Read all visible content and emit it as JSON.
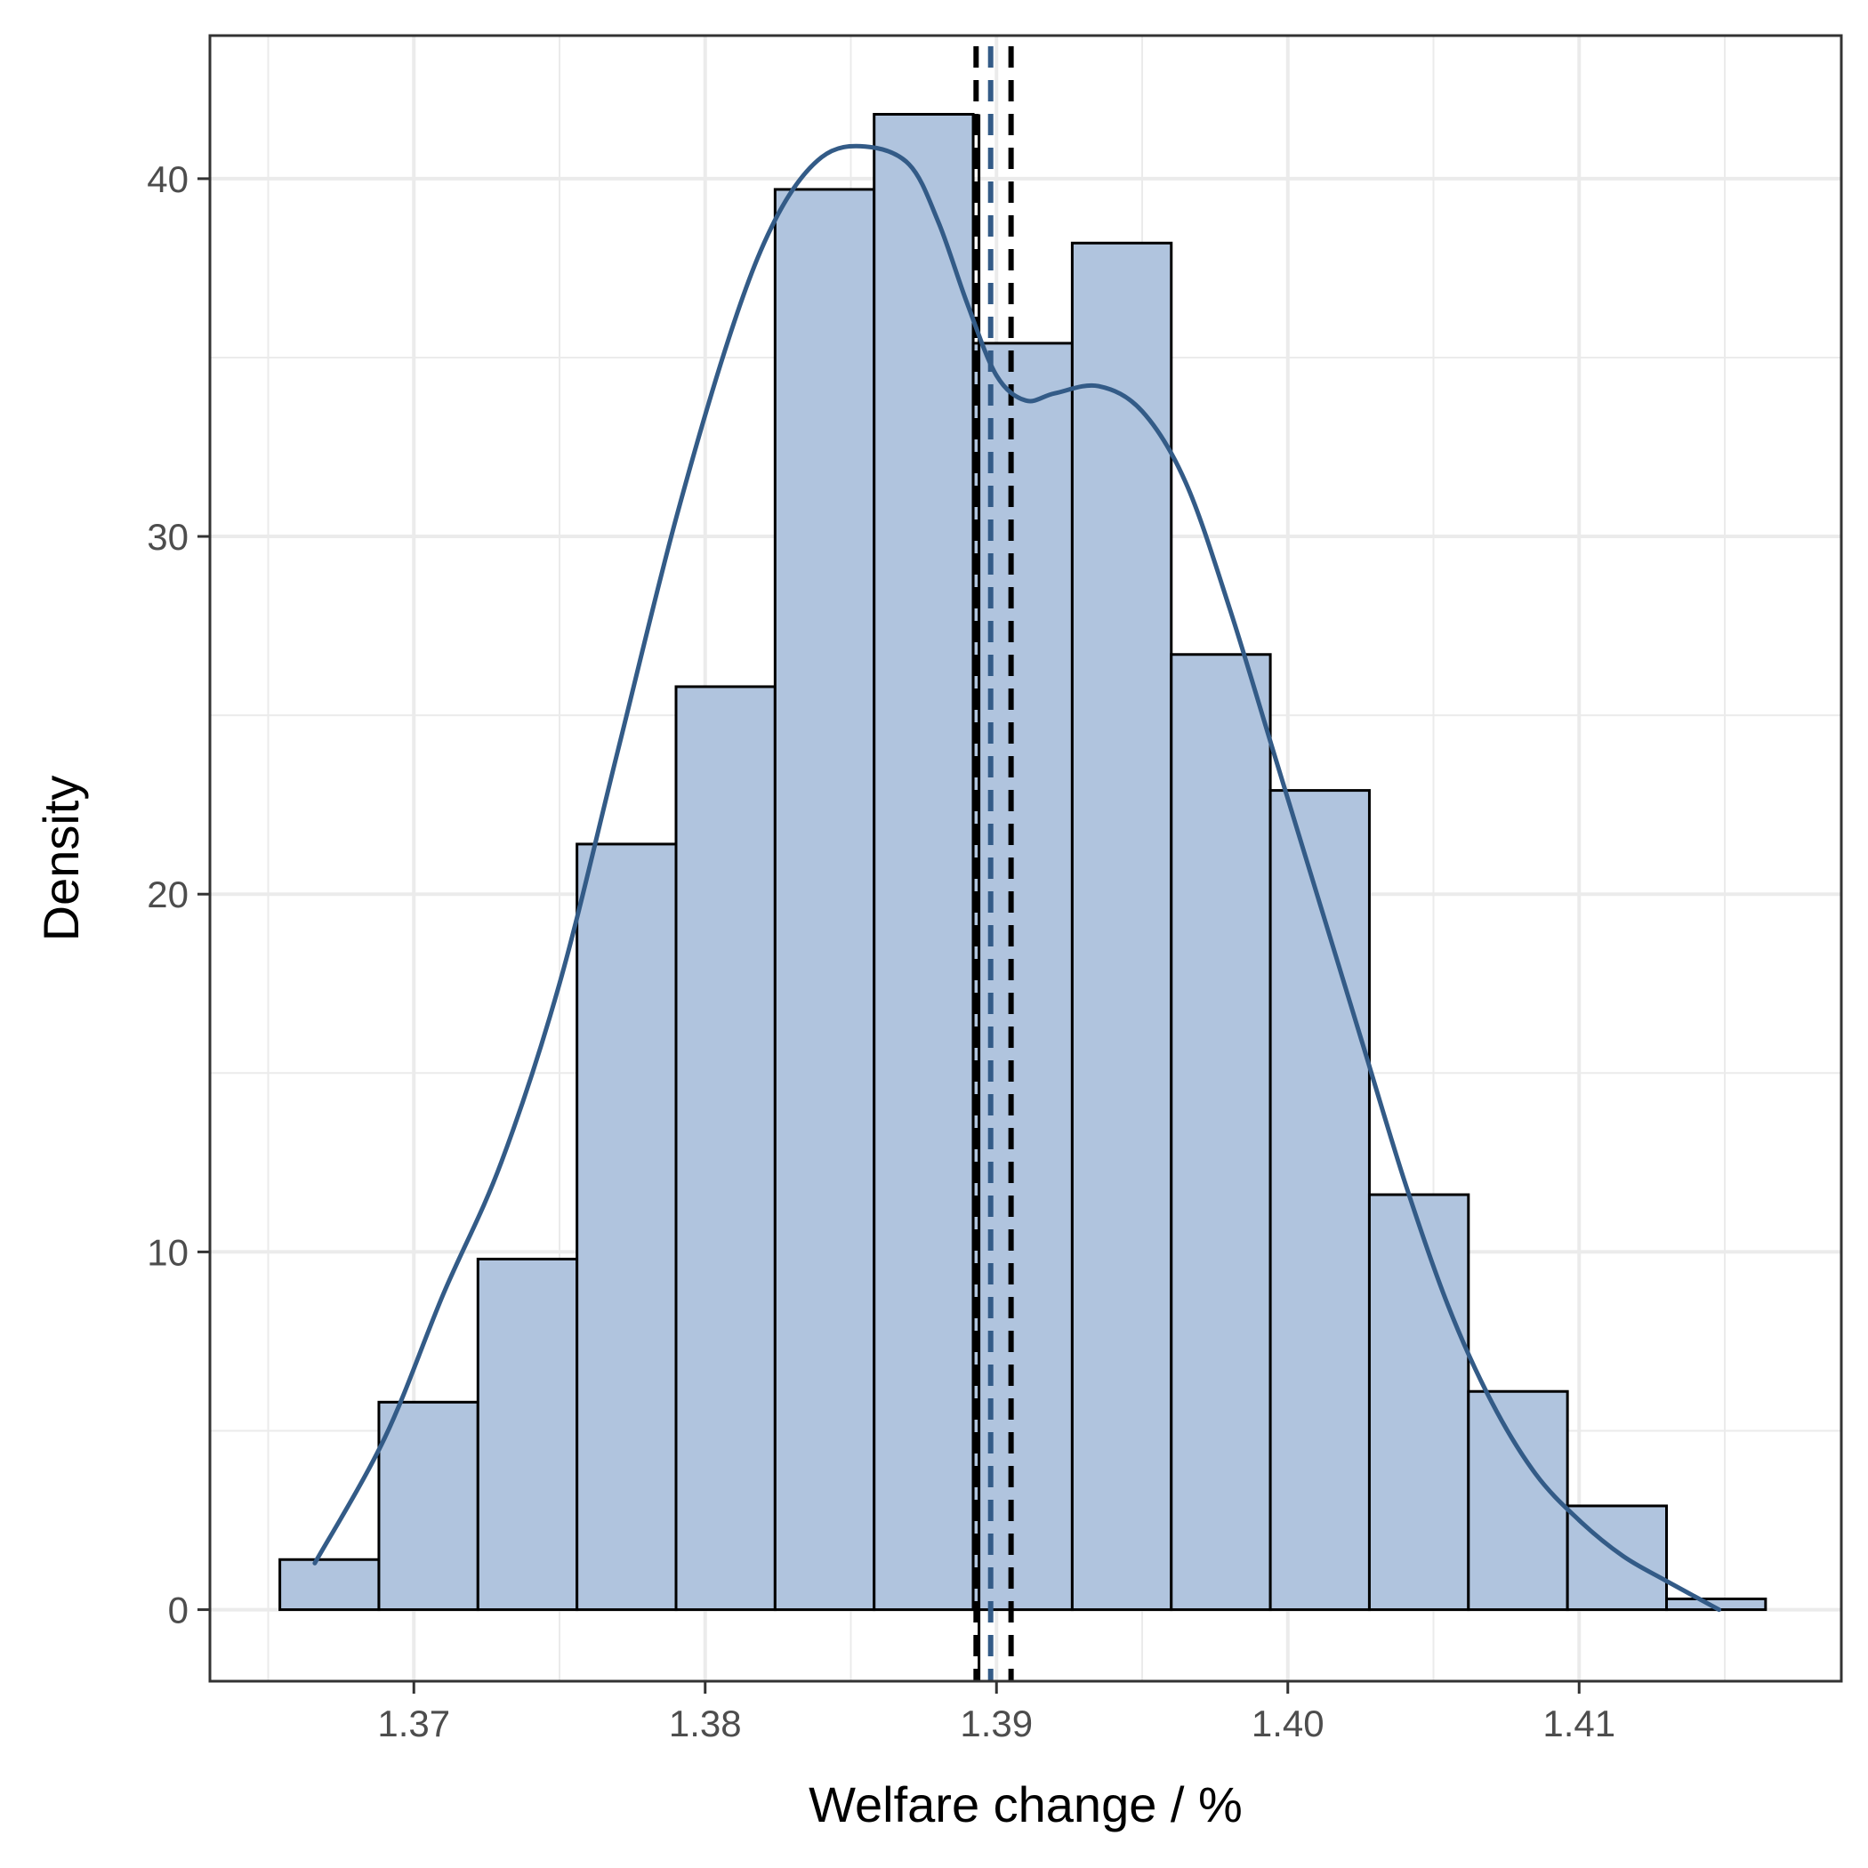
{
  "chart_data": {
    "type": "bar",
    "subtype": "histogram-with-density",
    "xlabel": "Welfare change / %",
    "ylabel": "Density",
    "xlim": [
      1.363,
      1.419
    ],
    "ylim": [
      -2,
      44
    ],
    "x_ticks": [
      1.37,
      1.38,
      1.39,
      1.4,
      1.41
    ],
    "x_tick_labels": [
      "1.37",
      "1.38",
      "1.39",
      "1.40",
      "1.41"
    ],
    "y_ticks": [
      0,
      10,
      20,
      30,
      40
    ],
    "y_tick_labels": [
      "0",
      "10",
      "20",
      "30",
      "40"
    ],
    "grid": true,
    "bins": [
      {
        "x0": 1.3654,
        "x1": 1.3688,
        "density": 1.4
      },
      {
        "x0": 1.3688,
        "x1": 1.3722,
        "density": 5.8
      },
      {
        "x0": 1.3722,
        "x1": 1.3756,
        "density": 9.8
      },
      {
        "x0": 1.3756,
        "x1": 1.379,
        "density": 21.4
      },
      {
        "x0": 1.379,
        "x1": 1.3824,
        "density": 25.8
      },
      {
        "x0": 1.3824,
        "x1": 1.3858,
        "density": 39.7
      },
      {
        "x0": 1.3858,
        "x1": 1.3892,
        "density": 41.8
      },
      {
        "x0": 1.3892,
        "x1": 1.3926,
        "density": 35.4
      },
      {
        "x0": 1.3926,
        "x1": 1.396,
        "density": 38.2
      },
      {
        "x0": 1.396,
        "x1": 1.3994,
        "density": 26.7
      },
      {
        "x0": 1.3994,
        "x1": 1.4028,
        "density": 22.9
      },
      {
        "x0": 1.4028,
        "x1": 1.4062,
        "density": 11.6
      },
      {
        "x0": 1.4062,
        "x1": 1.4096,
        "density": 6.1
      },
      {
        "x0": 1.4096,
        "x1": 1.413,
        "density": 2.9
      },
      {
        "x0": 1.413,
        "x1": 1.4164,
        "density": 0.3
      }
    ],
    "density_curve": {
      "x": [
        1.3666,
        1.369,
        1.371,
        1.373,
        1.375,
        1.377,
        1.379,
        1.381,
        1.3825,
        1.384,
        1.3855,
        1.387,
        1.388,
        1.389,
        1.39,
        1.391,
        1.392,
        1.3935,
        1.395,
        1.3965,
        1.398,
        1.3995,
        1.401,
        1.4025,
        1.404,
        1.4055,
        1.407,
        1.4085,
        1.41,
        1.4115,
        1.413,
        1.4148
      ],
      "y": [
        1.3,
        4.8,
        8.8,
        12.5,
        17.5,
        24.0,
        30.5,
        36.0,
        39.0,
        40.6,
        40.9,
        40.4,
        38.8,
        36.5,
        34.5,
        33.8,
        34.0,
        34.2,
        33.5,
        31.5,
        28.0,
        24.0,
        20.0,
        16.0,
        12.0,
        8.5,
        5.8,
        3.8,
        2.5,
        1.5,
        0.8,
        0.0
      ]
    },
    "vertical_lines": {
      "mean": 1.3898,
      "median": 1.3894,
      "ci_lower": 1.3893,
      "ci_upper": 1.3905
    },
    "colors": {
      "bar_fill": "#b0c4de",
      "bar_stroke": "#000000",
      "density_line": "#335b87",
      "grid": "#ebebeb",
      "panel_border": "#333333"
    }
  }
}
